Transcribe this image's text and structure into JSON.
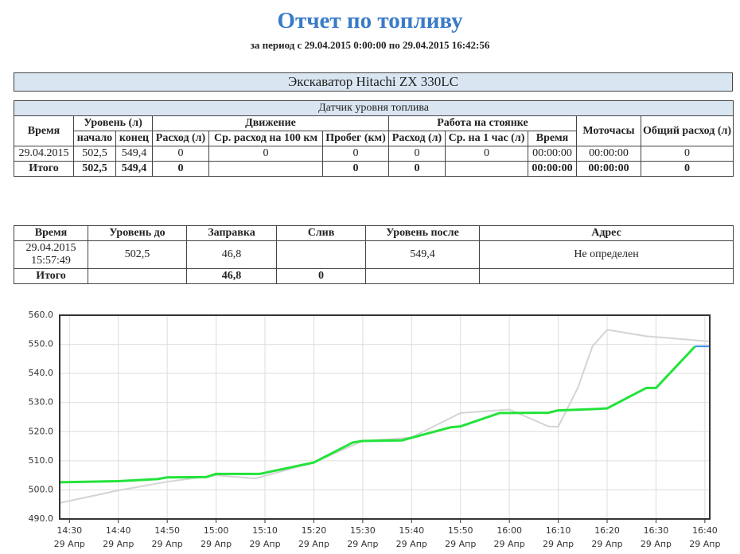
{
  "header": {
    "title": "Отчет по топливу",
    "subtitle": "за период с 29.04.2015 0:00:00 по 29.04.2015 16:42:56"
  },
  "machine": "Экскаватор Hitachi ZX 330LC",
  "sensor_table": {
    "caption": "Датчик уровня топлива",
    "head_top": [
      "Время",
      "Уровень (л)",
      "Движение",
      "Работа на стоянке",
      "Моточасы",
      "Общий расход (л)"
    ],
    "head_sub": [
      "начало",
      "конец",
      "Расход (л)",
      "Ср. расход на 100 км",
      "Пробег (км)",
      "Расход (л)",
      "Ср. на 1 час (л)",
      "Время"
    ],
    "rows": [
      [
        "29.04.2015",
        "502,5",
        "549,4",
        "0",
        "0",
        "0",
        "0",
        "0",
        "00:00:00",
        "00:00:00",
        "0"
      ]
    ],
    "total": [
      "Итого",
      "502,5",
      "549,4",
      "0",
      null,
      "0",
      "0",
      null,
      "00:00:00",
      "00:00:00",
      "0"
    ]
  },
  "refuel_table": {
    "head": [
      "Время",
      "Уровень до",
      "Заправка",
      "Слив",
      "Уровень после",
      "Адрес"
    ],
    "rows": [
      [
        "29.04.2015 15:57:49",
        "502,5",
        "46,8",
        null,
        "549,4",
        "Не определен"
      ]
    ],
    "total": [
      "Итого",
      null,
      "46,8",
      "0",
      null,
      null
    ]
  },
  "chart_data": {
    "type": "line",
    "xlim": [
      "14:28",
      "16:41"
    ],
    "xticks": [
      {
        "value": "14:30",
        "label": "14:30",
        "date": "29 Апр"
      },
      {
        "value": "14:40",
        "label": "14:40",
        "date": "29 Апр"
      },
      {
        "value": "14:50",
        "label": "14:50",
        "date": "29 Апр"
      },
      {
        "value": "15:00",
        "label": "15:00",
        "date": "29 Апр"
      },
      {
        "value": "15:10",
        "label": "15:10",
        "date": "29 Апр"
      },
      {
        "value": "15:20",
        "label": "15:20",
        "date": "29 Апр"
      },
      {
        "value": "15:30",
        "label": "15:30",
        "date": "29 Апр"
      },
      {
        "value": "15:40",
        "label": "15:40",
        "date": "29 Апр"
      },
      {
        "value": "15:50",
        "label": "15:50",
        "date": "29 Апр"
      },
      {
        "value": "16:00",
        "label": "16:00",
        "date": "29 Апр"
      },
      {
        "value": "16:10",
        "label": "16:10",
        "date": "29 Апр"
      },
      {
        "value": "16:20",
        "label": "16:20",
        "date": "29 Апр"
      },
      {
        "value": "16:30",
        "label": "16:30",
        "date": "29 Апр"
      },
      {
        "value": "16:40",
        "label": "16:40",
        "date": "29 Апр"
      }
    ],
    "ylim": [
      490,
      560
    ],
    "yticks": [
      {
        "value": 490,
        "label": "490.0"
      },
      {
        "value": 500,
        "label": "500.0"
      },
      {
        "value": 510,
        "label": "510.0"
      },
      {
        "value": 520,
        "label": "520.0"
      },
      {
        "value": 530,
        "label": "530.0"
      },
      {
        "value": 540,
        "label": "540.0"
      },
      {
        "value": 550,
        "label": "550.0"
      },
      {
        "value": 560,
        "label": "560.0"
      }
    ],
    "grid": true,
    "series": [
      {
        "color": "#d4d4d4",
        "width": 2,
        "x": [
          "14:28",
          "14:40",
          "14:50",
          "15:00",
          "15:08",
          "15:20",
          "15:30",
          "15:40",
          "15:50",
          "16:00",
          "16:08",
          "16:10",
          "16:14",
          "16:17",
          "16:20",
          "16:28",
          "16:41"
        ],
        "values": [
          495.5,
          499.8,
          502.8,
          505.0,
          503.9,
          509.4,
          516.8,
          518.0,
          526.4,
          527.6,
          521.8,
          521.7,
          535.0,
          549.3,
          555.0,
          552.8,
          551.0
        ]
      },
      {
        "color": "#22e33a",
        "width": 3,
        "x": [
          "14:28",
          "14:40",
          "14:48",
          "14:50",
          "14:58",
          "15:00",
          "15:09",
          "15:18",
          "15:20",
          "15:28",
          "15:30",
          "15:38",
          "15:48",
          "15:50",
          "15:58",
          "16:08",
          "16:10",
          "16:18",
          "16:20",
          "16:28",
          "16:30",
          "16:38"
        ],
        "values": [
          502.6,
          503.0,
          503.7,
          504.3,
          504.4,
          505.5,
          505.5,
          508.7,
          509.4,
          516.3,
          516.8,
          517.0,
          521.5,
          521.8,
          526.4,
          526.5,
          527.3,
          527.8,
          528.0,
          535.0,
          535.0,
          549.3
        ]
      },
      {
        "color": "#3c8cf0",
        "width": 2,
        "x": [
          "16:38",
          "16:41"
        ],
        "values": [
          549.3,
          549.3
        ]
      }
    ]
  }
}
